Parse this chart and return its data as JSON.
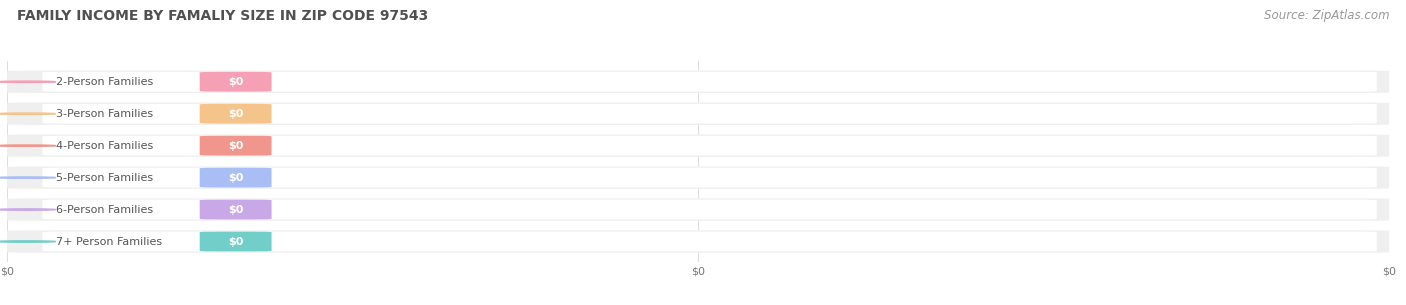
{
  "title": "FAMILY INCOME BY FAMALIY SIZE IN ZIP CODE 97543",
  "source_text": "Source: ZipAtlas.com",
  "categories": [
    "2-Person Families",
    "3-Person Families",
    "4-Person Families",
    "5-Person Families",
    "6-Person Families",
    "7+ Person Families"
  ],
  "values": [
    0,
    0,
    0,
    0,
    0,
    0
  ],
  "bar_colors": [
    "#f5a0b5",
    "#f5c48a",
    "#f0968c",
    "#a8bef5",
    "#c9a8e8",
    "#72cec8"
  ],
  "bar_bg_color": "#efefef",
  "bar_inner_bg": "#f8f8f8",
  "background_color": "#ffffff",
  "title_color": "#505050",
  "label_color": "#555555",
  "value_label_color": "#ffffff",
  "source_color": "#999999",
  "title_fontsize": 10,
  "label_fontsize": 8,
  "value_fontsize": 8,
  "source_fontsize": 8.5,
  "x_tick_labels": [
    "$0",
    "$0",
    "$0"
  ],
  "x_tick_positions": [
    0.0,
    0.5,
    1.0
  ]
}
